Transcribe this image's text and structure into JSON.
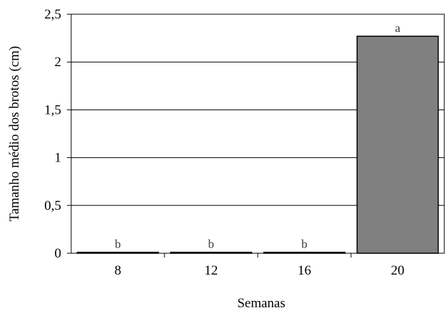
{
  "chart_data": {
    "type": "bar",
    "title": "",
    "xlabel": "Semanas",
    "ylabel": "Tamanho médio dos brotos (cm)",
    "categories": [
      "8",
      "12",
      "16",
      "20"
    ],
    "values": [
      0.01,
      0.01,
      0.01,
      2.27
    ],
    "data_labels": [
      "b",
      "b",
      "b",
      "a"
    ],
    "ylim": [
      0,
      2.5
    ],
    "yticks": [
      0,
      0.5,
      1,
      1.5,
      2,
      2.5
    ],
    "ytick_labels": [
      "0",
      "0,5",
      "1",
      "1,5",
      "2",
      "2,5"
    ],
    "grid": true,
    "legend": "none",
    "bar_color": "#808080",
    "bar_edge_color": "#000000",
    "grid_color": "#000000"
  }
}
